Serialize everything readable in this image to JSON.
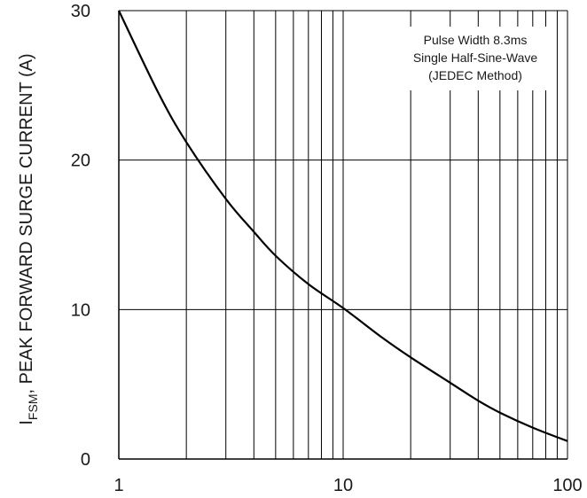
{
  "chart_data": {
    "type": "line",
    "xscale": "log",
    "xlim": [
      1,
      100
    ],
    "ylim": [
      0,
      30
    ],
    "x_ticks": [
      "1",
      "10",
      "100"
    ],
    "y_ticks": [
      "0",
      "10",
      "20",
      "30"
    ],
    "ylabel_main": "I",
    "ylabel_sub": "FSM",
    "ylabel_rest": ", PEAK FORWARD SURGE CURRENT (A)",
    "annotation": [
      "Pulse Width 8.3ms",
      "Single Half-Sine-Wave",
      "(JEDEC Method)"
    ],
    "grid": true,
    "series": [
      {
        "x": [
          1,
          1.5,
          2,
          3,
          4,
          5,
          7,
          10,
          15,
          20,
          30,
          40,
          50,
          70,
          100
        ],
        "y": [
          30,
          24.5,
          21.2,
          17.4,
          15.2,
          13.6,
          11.7,
          10.1,
          8.1,
          6.8,
          5.1,
          3.9,
          3.1,
          2.1,
          1.2
        ]
      }
    ],
    "colors": {
      "line": "#000000",
      "grid": "#000000",
      "text": "#1a1a1a"
    }
  }
}
